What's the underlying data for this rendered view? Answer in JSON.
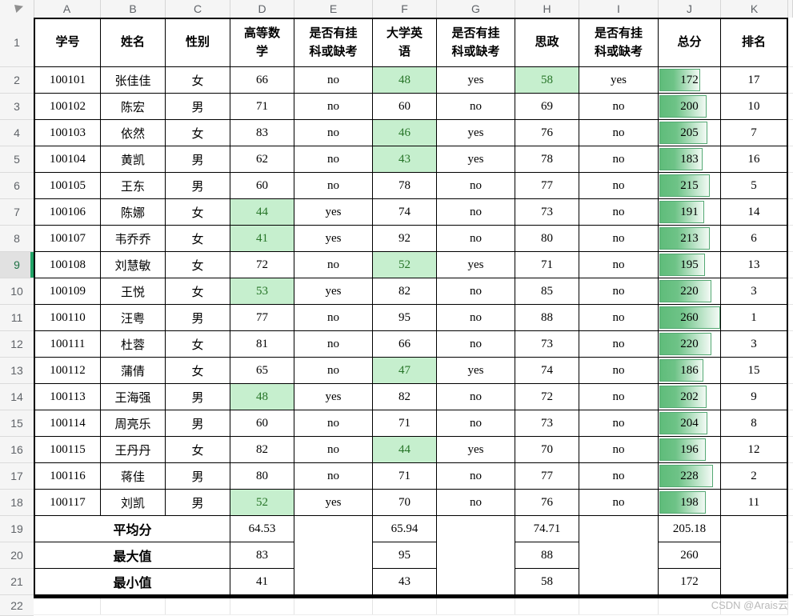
{
  "app": {
    "watermark": "CSDN @Arais云"
  },
  "grid": {
    "column_letters": [
      "A",
      "B",
      "C",
      "D",
      "E",
      "F",
      "G",
      "H",
      "I",
      "J",
      "K"
    ],
    "row_numbers": [
      1,
      2,
      3,
      4,
      5,
      6,
      7,
      8,
      9,
      10,
      11,
      12,
      13,
      14,
      15,
      16,
      17,
      18,
      19,
      20,
      21,
      22
    ],
    "selected_row": 9
  },
  "table": {
    "headers": [
      "学号",
      "姓名",
      "性别",
      "高等数学",
      "是否有挂科或缺考",
      "大学英语",
      "是否有挂科或缺考",
      "思政",
      "是否有挂科或缺考",
      "总分",
      "排名"
    ],
    "fail_threshold": 60,
    "bar_max": 260,
    "rows": [
      {
        "id": "100101",
        "name": "张佳佳",
        "gender": "女",
        "math": 66,
        "math_flag": "no",
        "english": 48,
        "english_flag": "yes",
        "politics": 58,
        "politics_flag": "yes",
        "total": 172,
        "rank": 17
      },
      {
        "id": "100102",
        "name": "陈宏",
        "gender": "男",
        "math": 71,
        "math_flag": "no",
        "english": 60,
        "english_flag": "no",
        "politics": 69,
        "politics_flag": "no",
        "total": 200,
        "rank": 10
      },
      {
        "id": "100103",
        "name": "依然",
        "gender": "女",
        "math": 83,
        "math_flag": "no",
        "english": 46,
        "english_flag": "yes",
        "politics": 76,
        "politics_flag": "no",
        "total": 205,
        "rank": 7
      },
      {
        "id": "100104",
        "name": "黄凯",
        "gender": "男",
        "math": 62,
        "math_flag": "no",
        "english": 43,
        "english_flag": "yes",
        "politics": 78,
        "politics_flag": "no",
        "total": 183,
        "rank": 16
      },
      {
        "id": "100105",
        "name": "王东",
        "gender": "男",
        "math": 60,
        "math_flag": "no",
        "english": 78,
        "english_flag": "no",
        "politics": 77,
        "politics_flag": "no",
        "total": 215,
        "rank": 5
      },
      {
        "id": "100106",
        "name": "陈娜",
        "gender": "女",
        "math": 44,
        "math_flag": "yes",
        "english": 74,
        "english_flag": "no",
        "politics": 73,
        "politics_flag": "no",
        "total": 191,
        "rank": 14
      },
      {
        "id": "100107",
        "name": "韦乔乔",
        "gender": "女",
        "math": 41,
        "math_flag": "yes",
        "english": 92,
        "english_flag": "no",
        "politics": 80,
        "politics_flag": "no",
        "total": 213,
        "rank": 6
      },
      {
        "id": "100108",
        "name": "刘慧敏",
        "gender": "女",
        "math": 72,
        "math_flag": "no",
        "english": 52,
        "english_flag": "yes",
        "politics": 71,
        "politics_flag": "no",
        "total": 195,
        "rank": 13
      },
      {
        "id": "100109",
        "name": "王悦",
        "gender": "女",
        "math": 53,
        "math_flag": "yes",
        "english": 82,
        "english_flag": "no",
        "politics": 85,
        "politics_flag": "no",
        "total": 220,
        "rank": 3
      },
      {
        "id": "100110",
        "name": "汪粤",
        "gender": "男",
        "math": 77,
        "math_flag": "no",
        "english": 95,
        "english_flag": "no",
        "politics": 88,
        "politics_flag": "no",
        "total": 260,
        "rank": 1
      },
      {
        "id": "100111",
        "name": "杜蓉",
        "gender": "女",
        "math": 81,
        "math_flag": "no",
        "english": 66,
        "english_flag": "no",
        "politics": 73,
        "politics_flag": "no",
        "total": 220,
        "rank": 3
      },
      {
        "id": "100112",
        "name": "蒲倩",
        "gender": "女",
        "math": 65,
        "math_flag": "no",
        "english": 47,
        "english_flag": "yes",
        "politics": 74,
        "politics_flag": "no",
        "total": 186,
        "rank": 15
      },
      {
        "id": "100113",
        "name": "王海强",
        "gender": "男",
        "math": 48,
        "math_flag": "yes",
        "english": 82,
        "english_flag": "no",
        "politics": 72,
        "politics_flag": "no",
        "total": 202,
        "rank": 9
      },
      {
        "id": "100114",
        "name": "周亮乐",
        "gender": "男",
        "math": 60,
        "math_flag": "no",
        "english": 71,
        "english_flag": "no",
        "politics": 73,
        "politics_flag": "no",
        "total": 204,
        "rank": 8
      },
      {
        "id": "100115",
        "name": "王丹丹",
        "gender": "女",
        "math": 82,
        "math_flag": "no",
        "english": 44,
        "english_flag": "yes",
        "politics": 70,
        "politics_flag": "no",
        "total": 196,
        "rank": 12
      },
      {
        "id": "100116",
        "name": "蒋佳",
        "gender": "男",
        "math": 80,
        "math_flag": "no",
        "english": 71,
        "english_flag": "no",
        "politics": 77,
        "politics_flag": "no",
        "total": 228,
        "rank": 2
      },
      {
        "id": "100117",
        "name": "刘凯",
        "gender": "男",
        "math": 52,
        "math_flag": "yes",
        "english": 70,
        "english_flag": "no",
        "politics": 76,
        "politics_flag": "no",
        "total": 198,
        "rank": 11
      }
    ],
    "summary": [
      {
        "label": "平均分",
        "math": "64.53",
        "english": "65.94",
        "politics": "74.71",
        "total": "205.18"
      },
      {
        "label": "最大值",
        "math": "83",
        "english": "95",
        "politics": "88",
        "total": "260"
      },
      {
        "label": "最小值",
        "math": "41",
        "english": "43",
        "politics": "58",
        "total": "172"
      }
    ],
    "colors": {
      "select_accent": "#21a366",
      "low_bg": "#c6efce",
      "low_text": "#267427",
      "bar_fill": "#63be7b",
      "bar_border": "#54a873"
    }
  }
}
